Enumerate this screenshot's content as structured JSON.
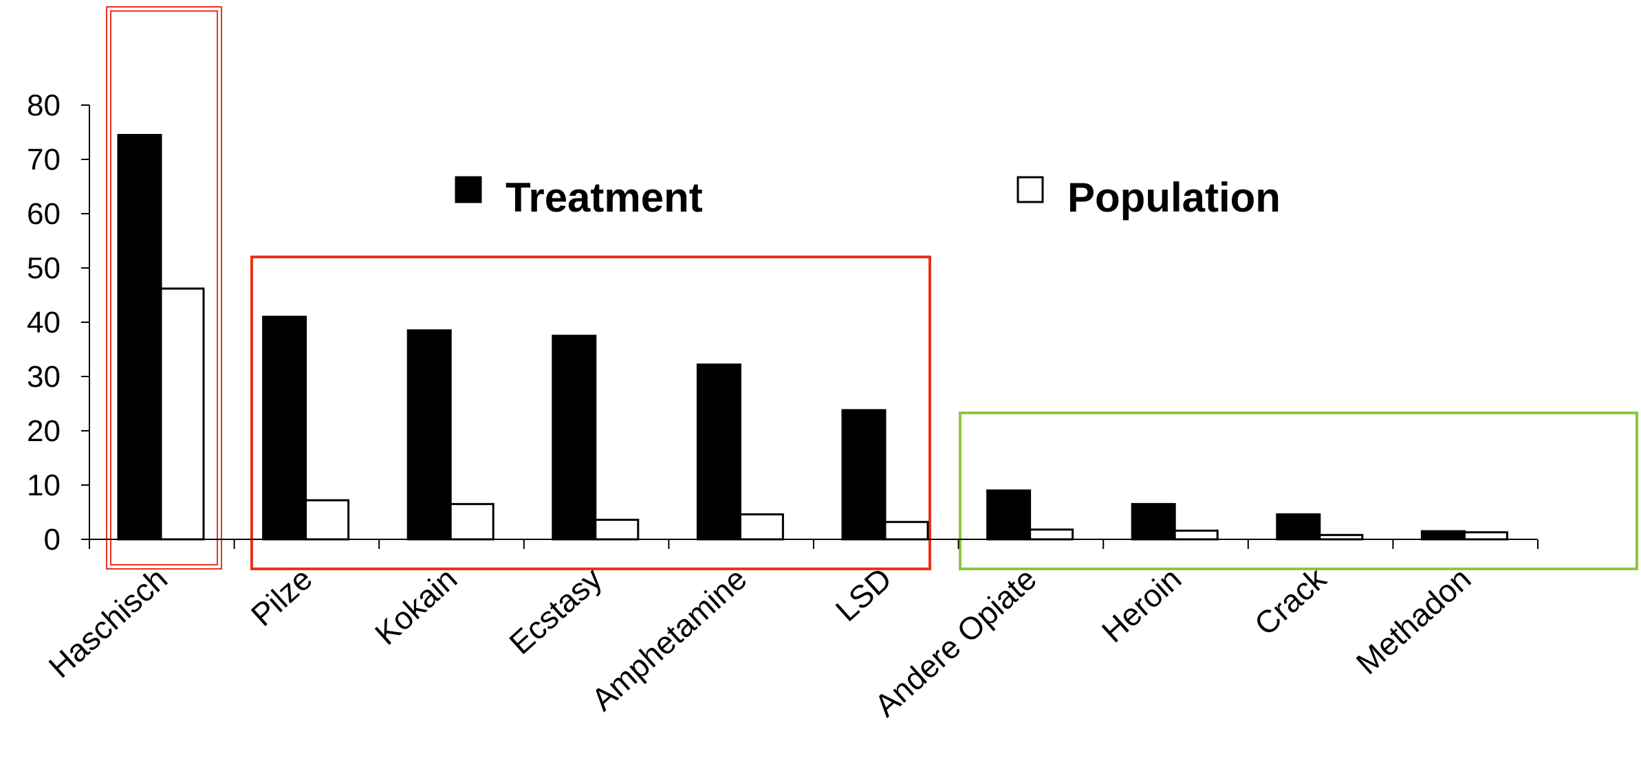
{
  "chart_data": {
    "type": "bar",
    "categories": [
      "Haschisch",
      "Pilze",
      "Kokain",
      "Ecstasy",
      "Amphetamine",
      "LSD",
      "Andere Opiate",
      "Heroin",
      "Crack",
      "Methadon"
    ],
    "series": [
      {
        "name": "Treatment",
        "color": "#000000",
        "values": [
          74.5,
          41,
          38.5,
          37.5,
          32.2,
          23.8,
          9,
          6.5,
          4.6,
          1.5
        ]
      },
      {
        "name": "Population",
        "color": "#ffffff",
        "values": [
          46.2,
          7.2,
          6.5,
          3.6,
          4.6,
          3.2,
          1.8,
          1.6,
          0.8,
          1.3
        ]
      }
    ],
    "ylim": [
      0,
      80
    ],
    "yticks": [
      0,
      10,
      20,
      30,
      40,
      50,
      60,
      70,
      80
    ],
    "grid": false,
    "legend": "top",
    "highlight_groups": [
      {
        "color": "#e8341c",
        "style": "double",
        "categories": [
          "Haschisch"
        ]
      },
      {
        "color": "#e8341c",
        "style": "single",
        "categories": [
          "Pilze",
          "Kokain",
          "Ecstasy",
          "Amphetamine",
          "LSD"
        ]
      },
      {
        "color": "#8cc63f",
        "style": "single",
        "categories": [
          "Andere Opiate",
          "Heroin",
          "Crack",
          "Methadon"
        ]
      }
    ]
  }
}
